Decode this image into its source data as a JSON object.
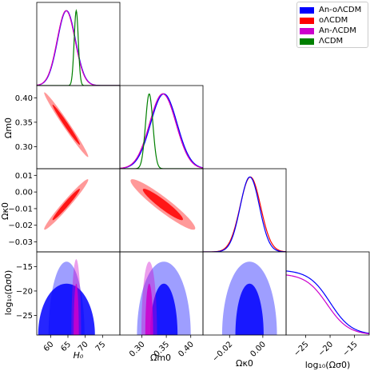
{
  "chart_data": {
    "type": "corner",
    "series": [
      {
        "name": "An-oΛCDM",
        "color": "#0000ff"
      },
      {
        "name": "oΛCDM",
        "color": "#ff0000"
      },
      {
        "name": "An-ΛCDM",
        "color": "#cc00cc"
      },
      {
        "name": "ΛCDM",
        "color": "#008000"
      }
    ],
    "params": [
      {
        "label": "H₀",
        "range": [
          56,
          80
        ],
        "ticks": [
          60,
          65,
          70,
          75
        ]
      },
      {
        "label": "Ωm0",
        "range": [
          0.255,
          0.425
        ],
        "ticks": [
          0.3,
          0.35,
          0.4
        ],
        "tick_labels": [
          "0.30",
          "0.35",
          "0.40"
        ]
      },
      {
        "label": "Ωκ0",
        "range": [
          -0.036,
          0.014
        ],
        "ticks": [
          -0.03,
          -0.02,
          -0.01,
          0.0,
          0.01
        ],
        "tick_labels": [
          "−0.03",
          "−0.02",
          "−0.01",
          "0.00",
          "0.01"
        ],
        "x_ticks": [
          -0.02,
          0.0
        ],
        "x_tick_labels": [
          "−0.02",
          "0.00"
        ]
      },
      {
        "label": "log₁₀(Ωσ0)",
        "range": [
          -29,
          -12
        ],
        "ticks": [
          -25,
          -20,
          -15
        ],
        "tick_labels": [
          "−25",
          "−20",
          "−15"
        ]
      }
    ],
    "marginals": {
      "H0": [
        {
          "series": "oΛCDM",
          "mean": 64.5,
          "sd": 2.6
        },
        {
          "series": "An-oΛCDM",
          "mean": 64.6,
          "sd": 2.6
        },
        {
          "series": "An-ΛCDM",
          "mean": 64.5,
          "sd": 2.6
        },
        {
          "series": "ΛCDM",
          "mean": 67.4,
          "sd": 0.6
        }
      ],
      "Om0": [
        {
          "series": "oΛCDM",
          "mean": 0.343,
          "sd": 0.027
        },
        {
          "series": "An-oΛCDM",
          "mean": 0.345,
          "sd": 0.027
        },
        {
          "series": "An-ΛCDM",
          "mean": 0.343,
          "sd": 0.027
        },
        {
          "series": "ΛCDM",
          "mean": 0.315,
          "sd": 0.0075
        }
      ],
      "Ok0": [
        {
          "series": "oΛCDM",
          "mean": -0.0075,
          "sd": 0.0062
        },
        {
          "series": "An-oΛCDM",
          "mean": -0.0078,
          "sd": 0.0058
        }
      ],
      "logOs0": [
        {
          "series": "An-oΛCDM",
          "plateau": 0.87,
          "drop": -20.0,
          "width": 2.2
        },
        {
          "series": "An-ΛCDM",
          "plateau": 0.82,
          "drop": -20.6,
          "width": 2.2
        }
      ]
    },
    "contours_2d": [
      {
        "x": "H0",
        "y": "Om0",
        "series": "oΛCDM",
        "mean": [
          64.5,
          0.345
        ],
        "sd": [
          2.6,
          0.027
        ],
        "rho": -0.985
      },
      {
        "x": "H0",
        "y": "Ok0",
        "series": "oΛCDM",
        "mean": [
          64.5,
          -0.0075
        ],
        "sd": [
          2.6,
          0.0062
        ],
        "rho": 0.975
      },
      {
        "x": "Om0",
        "y": "Ok0",
        "series": "oΛCDM",
        "mean": [
          0.343,
          -0.0075
        ],
        "sd": [
          0.027,
          0.0062
        ],
        "rho": -0.94
      },
      {
        "x": "H0",
        "y": "logOs0",
        "series": "An-oΛCDM",
        "center": [
          64.6,
          -29
        ],
        "half_width": [
          5.2,
          8.2
        ],
        "height": [
          15,
          10.5
        ]
      },
      {
        "x": "H0",
        "y": "logOs0",
        "series": "An-ΛCDM",
        "center": [
          67.4,
          -29
        ],
        "half_width": [
          1.4,
          0.75
        ],
        "height": [
          15.5,
          10.5
        ]
      },
      {
        "x": "Om0",
        "y": "logOs0",
        "series": "An-oΛCDM",
        "center": [
          0.345,
          -29
        ],
        "half_width": [
          0.055,
          0.028
        ],
        "height": [
          15,
          10.5
        ]
      },
      {
        "x": "Om0",
        "y": "logOs0",
        "series": "An-ΛCDM",
        "center": [
          0.315,
          -29
        ],
        "half_width": [
          0.016,
          0.008
        ],
        "height": [
          15,
          10.5
        ]
      },
      {
        "x": "Ok0",
        "y": "logOs0",
        "series": "An-oΛCDM",
        "center": [
          -0.008,
          -29
        ],
        "half_width": [
          0.0165,
          0.0085
        ],
        "height": [
          15,
          10.5
        ]
      }
    ]
  }
}
